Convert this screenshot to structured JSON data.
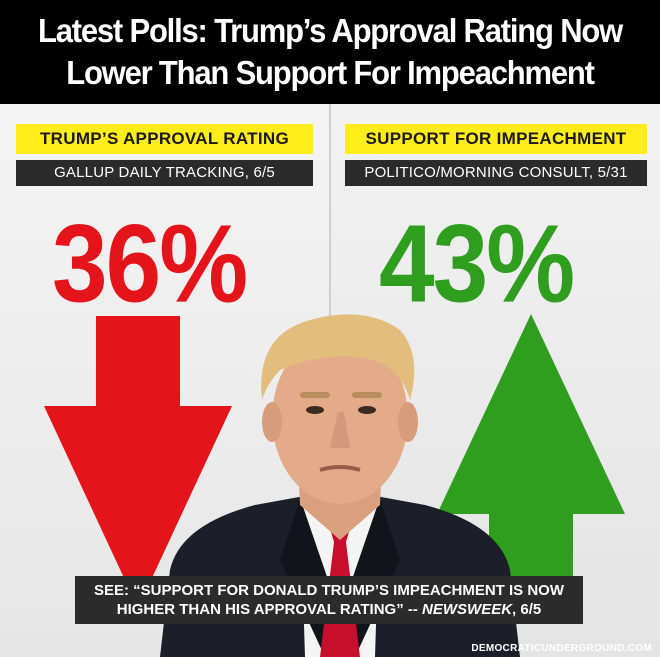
{
  "title": {
    "line1": "Latest Polls: Trump’s Approval Rating Now",
    "line2": "Lower Than Support For Impeachment"
  },
  "left_panel": {
    "heading": "TRUMP’S APPROVAL RATING",
    "source": "GALLUP DAILY TRACKING, 6/5",
    "value": "36%",
    "arrow_icon": "arrow-down-icon",
    "color": "#e4141a"
  },
  "right_panel": {
    "heading": "SUPPORT FOR IMPEACHMENT",
    "source": "POLITICO/MORNING CONSULT, 5/31",
    "value": "43%",
    "arrow_icon": "arrow-up-icon",
    "color": "#2f9e1e"
  },
  "caption": {
    "line1": "SEE: “SUPPORT FOR DONALD TRUMP’S IMPEACHMENT IS NOW",
    "line2_text": "HIGHER THAN HIS APPROVAL RATING” -- ",
    "line2_source": "NEWSWEEK",
    "line2_date": ", 6/5"
  },
  "watermark": "DEMOCRATICUNDERGROUND.COM"
}
